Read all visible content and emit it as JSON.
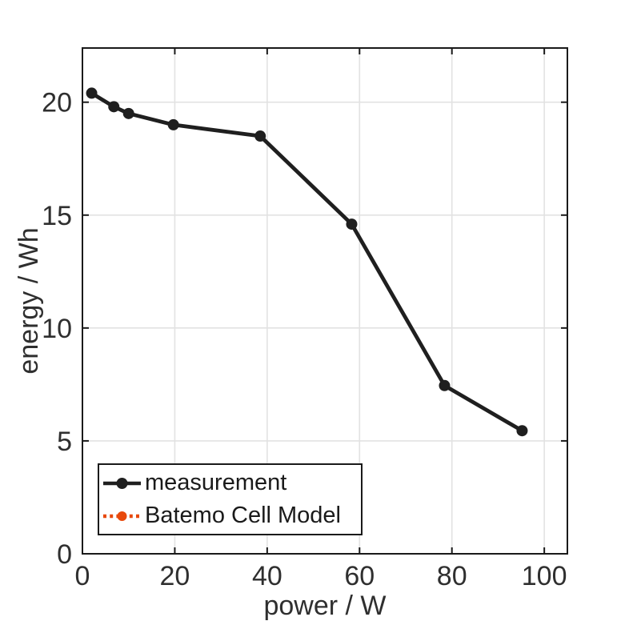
{
  "figure": {
    "background": "#ffffff"
  },
  "chart_data": {
    "type": "line",
    "title": "",
    "xlabel": "power / W",
    "ylabel": "energy / Wh",
    "xlim": [
      0,
      105
    ],
    "ylim": [
      0,
      22.4
    ],
    "xticks": [
      0,
      20,
      40,
      60,
      80,
      100
    ],
    "yticks": [
      0,
      5,
      10,
      15,
      20
    ],
    "grid": true,
    "tick_direction": "in",
    "box": true,
    "legend_position": "bottom-left",
    "series": [
      {
        "name": "measurement",
        "color": "#1f1f1f",
        "line_style": "solid",
        "marker": "filled-circle",
        "visible_in_plot": true,
        "x": [
          2,
          6.8,
          10,
          19.7,
          38.5,
          58.3,
          78.4,
          95.2
        ],
        "y": [
          20.4,
          19.8,
          19.5,
          19.0,
          18.5,
          14.6,
          7.45,
          5.45
        ]
      },
      {
        "name": "Batemo Cell Model",
        "color": "#E8490C",
        "line_style": "dotted",
        "marker": "filled-circle",
        "visible_in_plot": false,
        "x": [],
        "y": []
      }
    ],
    "colors": {
      "axis": "#1a1a1a",
      "grid": "#e2e2e2",
      "tick_text": "#2f2f2f",
      "legend_border": "#1a1a1a",
      "legend_text": "#1a1a1a"
    }
  }
}
